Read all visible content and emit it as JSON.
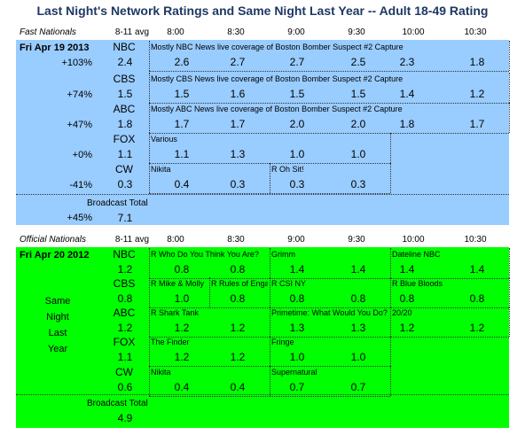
{
  "title": "Last Night's Network Ratings and Same Night Last Year -- Adult 18-49 Rating",
  "times": [
    "8-11 avg",
    "8:00",
    "8:30",
    "9:00",
    "9:30",
    "10:00",
    "10:30"
  ],
  "fast": {
    "section": "Fast Nationals",
    "date": "Fri Apr 19 2013",
    "bg_color": "#99ccff",
    "rows": [
      {
        "net": "NBC",
        "change": "+103%",
        "avg": "2.4",
        "values": [
          "2.6",
          "2.7",
          "2.7",
          "2.5",
          "2.3",
          "1.8"
        ],
        "programs": [
          {
            "label": "Mostly NBC News live coverage of Boston Bomber Suspect #2 Capture",
            "start": 0,
            "span": 6
          }
        ]
      },
      {
        "net": "CBS",
        "change": "+74%",
        "avg": "1.5",
        "values": [
          "1.5",
          "1.6",
          "1.5",
          "1.5",
          "1.4",
          "1.2"
        ],
        "programs": [
          {
            "label": "Mostly CBS News live coverage of Boston Bomber Suspect #2 Capture",
            "start": 0,
            "span": 6
          }
        ]
      },
      {
        "net": "ABC",
        "change": "+47%",
        "avg": "1.8",
        "values": [
          "1.7",
          "1.7",
          "2.0",
          "2.0",
          "1.8",
          "1.7"
        ],
        "programs": [
          {
            "label": "Mostly ABC News live coverage of Boston Bomber Suspect #2 Capture",
            "start": 0,
            "span": 6
          }
        ]
      },
      {
        "net": "FOX",
        "change": "+0%",
        "avg": "1.1",
        "values": [
          "1.1",
          "1.3",
          "1.0",
          "1.0",
          "",
          ""
        ],
        "programs": [
          {
            "label": "Various",
            "start": 0,
            "span": 4
          }
        ]
      },
      {
        "net": "CW",
        "change": "-41%",
        "avg": "0.3",
        "values": [
          "0.4",
          "0.3",
          "0.3",
          "0.3",
          "",
          ""
        ],
        "programs": [
          {
            "label": "Nikita",
            "start": 0,
            "span": 2
          },
          {
            "label": "R Oh Sit!",
            "start": 2,
            "span": 2
          }
        ]
      }
    ],
    "total_label": "Broadcast Total",
    "total_change": "+45%",
    "total_avg": "7.1"
  },
  "official": {
    "section": "Official Nationals",
    "date": "Fri Apr 20 2012",
    "bg_color": "#00ff00",
    "side_labels": [
      "Same",
      "Night",
      "Last",
      "Year"
    ],
    "rows": [
      {
        "net": "NBC",
        "avg": "1.2",
        "values": [
          "0.8",
          "0.8",
          "1.4",
          "1.4",
          "1.4",
          "1.4"
        ],
        "programs": [
          {
            "label": "R Who Do You Think You Are?",
            "start": 0,
            "span": 2
          },
          {
            "label": "Grimm",
            "start": 2,
            "span": 2
          },
          {
            "label": "Dateline NBC",
            "start": 4,
            "span": 2
          }
        ]
      },
      {
        "net": "CBS",
        "avg": "0.8",
        "values": [
          "1.0",
          "0.8",
          "0.8",
          "0.8",
          "0.8",
          "0.8"
        ],
        "programs": [
          {
            "label": "R Mike & Molly",
            "start": 0,
            "span": 1
          },
          {
            "label": "R Rules of Engagement",
            "start": 1,
            "span": 1
          },
          {
            "label": "R CSI NY",
            "start": 2,
            "span": 2
          },
          {
            "label": "R Blue Bloods",
            "start": 4,
            "span": 2
          }
        ]
      },
      {
        "net": "ABC",
        "avg": "1.2",
        "values": [
          "1.2",
          "1.2",
          "1.3",
          "1.3",
          "1.2",
          "1.2"
        ],
        "programs": [
          {
            "label": "R Shark Tank",
            "start": 0,
            "span": 2
          },
          {
            "label": "Primetime: What Would You Do?",
            "start": 2,
            "span": 2
          },
          {
            "label": "20/20",
            "start": 4,
            "span": 2
          }
        ]
      },
      {
        "net": "FOX",
        "avg": "1.1",
        "values": [
          "1.2",
          "1.2",
          "1.0",
          "1.0",
          "",
          ""
        ],
        "programs": [
          {
            "label": "The Finder",
            "start": 0,
            "span": 2
          },
          {
            "label": "Fringe",
            "start": 2,
            "span": 2
          }
        ]
      },
      {
        "net": "CW",
        "avg": "0.6",
        "values": [
          "0.4",
          "0.4",
          "0.7",
          "0.7",
          "",
          ""
        ],
        "programs": [
          {
            "label": "Nikita",
            "start": 0,
            "span": 2
          },
          {
            "label": "Supernatural",
            "start": 2,
            "span": 2
          }
        ]
      }
    ],
    "total_label": "Broadcast Total",
    "total_avg": "4.9"
  }
}
